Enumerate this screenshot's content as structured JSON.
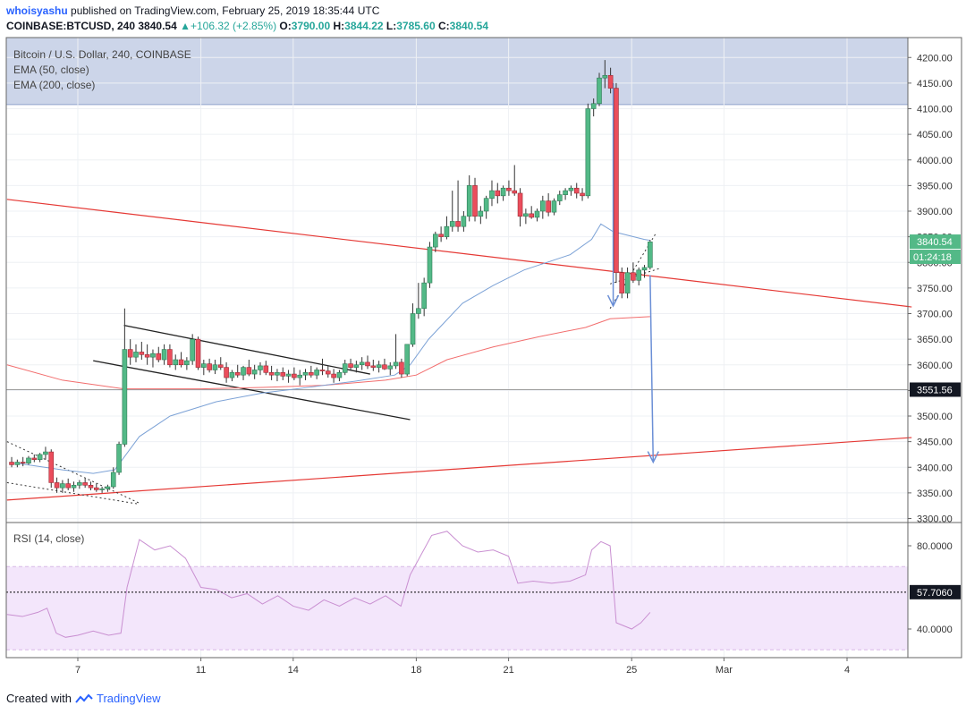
{
  "header": {
    "author": "whoisyashu",
    "published_text": "published on TradingView.com, February 25, 2019 18:35:44 UTC",
    "symbol": "COINBASE:BTCUSD, 240",
    "last": "3840.54",
    "change": "+106.32 (+2.85%)",
    "o_label": "O:",
    "o_value": "3790.00",
    "h_label": "H:",
    "h_value": "3844.22",
    "l_label": "L:",
    "l_value": "3785.60",
    "c_label": "C:",
    "c_value": "3840.54"
  },
  "legend": {
    "title": "Bitcoin / U.S. Dollar, 240, COINBASE",
    "ema50": "EMA (50, close)",
    "ema200": "EMA (200, close)",
    "rsi": "RSI (14, close)"
  },
  "footer": {
    "created_with": "Created with",
    "brand": "TradingView"
  },
  "colors": {
    "up": "#26a69a",
    "down": "#ef5350",
    "candle_up": "#53b987",
    "candle_down": "#eb4d5c",
    "ema50": "#7ca2d6",
    "ema200": "#f26d6d",
    "trend": "#e53935",
    "zone": "#c9d3e8",
    "rsi": "#c98fd1",
    "rsi_band": "#f3e6fb",
    "arrow": "#6b8fd6"
  },
  "chart_data": {
    "type": "candlestick",
    "price_axis": {
      "range": [
        3300,
        4200
      ],
      "ticks": [
        3300,
        3350,
        3400,
        3450,
        3500,
        3550,
        3600,
        3650,
        3700,
        3750,
        3800,
        3850,
        3900,
        3950,
        4000,
        4050,
        4100,
        4150,
        4200
      ],
      "tick_labels": [
        "3300.00",
        "3350.00",
        "3400.00",
        "3450.00",
        "3500.00",
        "3550.00",
        "3600.00",
        "3650.00",
        "3700.00",
        "3750.00",
        "3800.00",
        "3850.00",
        "3900.00",
        "3950.00",
        "4000.00",
        "4050.00",
        "4100.00",
        "4150.00",
        "4200.00"
      ]
    },
    "time_axis": {
      "ticks": [
        {
          "day": 7,
          "label": "7"
        },
        {
          "day": 11,
          "label": "11"
        },
        {
          "day": 14,
          "label": "14"
        },
        {
          "day": 18,
          "label": "18"
        },
        {
          "day": 21,
          "label": "21"
        },
        {
          "day": 25,
          "label": "25"
        },
        {
          "day": 28,
          "label": "Mar"
        },
        {
          "day": 32,
          "label": "4"
        }
      ],
      "range_days": [
        4.7,
        34.1
      ]
    },
    "price_labels": [
      {
        "value": 3840.54,
        "text": "3840.54",
        "countdown": "01:24:18"
      },
      {
        "value": 3551.56,
        "text": "3551.56"
      }
    ],
    "horizontal_line": 3551.56,
    "resistance_zone": [
      4108,
      4240
    ],
    "candles_ohlc": [
      [
        3410,
        3420,
        3400,
        3405
      ],
      [
        3405,
        3415,
        3400,
        3410
      ],
      [
        3410,
        3420,
        3402,
        3408
      ],
      [
        3408,
        3422,
        3405,
        3418
      ],
      [
        3418,
        3425,
        3410,
        3415
      ],
      [
        3415,
        3428,
        3410,
        3425
      ],
      [
        3425,
        3440,
        3415,
        3430
      ],
      [
        3430,
        3435,
        3360,
        3370
      ],
      [
        3370,
        3380,
        3350,
        3360
      ],
      [
        3360,
        3375,
        3350,
        3368
      ],
      [
        3368,
        3378,
        3355,
        3360
      ],
      [
        3360,
        3372,
        3352,
        3365
      ],
      [
        3365,
        3375,
        3358,
        3370
      ],
      [
        3370,
        3378,
        3360,
        3365
      ],
      [
        3365,
        3372,
        3355,
        3360
      ],
      [
        3360,
        3368,
        3352,
        3356
      ],
      [
        3356,
        3362,
        3350,
        3358
      ],
      [
        3358,
        3366,
        3352,
        3362
      ],
      [
        3362,
        3400,
        3358,
        3390
      ],
      [
        3390,
        3450,
        3385,
        3445
      ],
      [
        3445,
        3710,
        3440,
        3630
      ],
      [
        3630,
        3650,
        3600,
        3615
      ],
      [
        3615,
        3640,
        3605,
        3625
      ],
      [
        3625,
        3645,
        3610,
        3620
      ],
      [
        3620,
        3640,
        3600,
        3615
      ],
      [
        3615,
        3630,
        3595,
        3622
      ],
      [
        3622,
        3635,
        3605,
        3610
      ],
      [
        3610,
        3640,
        3600,
        3630
      ],
      [
        3630,
        3640,
        3595,
        3600
      ],
      [
        3600,
        3620,
        3590,
        3610
      ],
      [
        3610,
        3625,
        3595,
        3600
      ],
      [
        3600,
        3615,
        3590,
        3608
      ],
      [
        3608,
        3660,
        3600,
        3650
      ],
      [
        3650,
        3655,
        3590,
        3595
      ],
      [
        3595,
        3610,
        3580,
        3602
      ],
      [
        3602,
        3612,
        3585,
        3590
      ],
      [
        3590,
        3610,
        3582,
        3600
      ],
      [
        3600,
        3615,
        3590,
        3595
      ],
      [
        3595,
        3605,
        3565,
        3575
      ],
      [
        3575,
        3590,
        3568,
        3585
      ],
      [
        3585,
        3600,
        3575,
        3580
      ],
      [
        3580,
        3598,
        3570,
        3595
      ],
      [
        3595,
        3610,
        3578,
        3582
      ],
      [
        3582,
        3600,
        3572,
        3590
      ],
      [
        3590,
        3605,
        3580,
        3598
      ],
      [
        3598,
        3608,
        3580,
        3585
      ],
      [
        3585,
        3598,
        3570,
        3580
      ],
      [
        3580,
        3592,
        3568,
        3585
      ],
      [
        3585,
        3595,
        3570,
        3578
      ],
      [
        3578,
        3590,
        3565,
        3582
      ],
      [
        3582,
        3595,
        3570,
        3575
      ],
      [
        3575,
        3590,
        3560,
        3580
      ],
      [
        3580,
        3592,
        3570,
        3585
      ],
      [
        3585,
        3598,
        3575,
        3580
      ],
      [
        3580,
        3595,
        3572,
        3590
      ],
      [
        3590,
        3612,
        3580,
        3588
      ],
      [
        3588,
        3598,
        3575,
        3582
      ],
      [
        3582,
        3592,
        3565,
        3575
      ],
      [
        3575,
        3590,
        3568,
        3585
      ],
      [
        3585,
        3610,
        3580,
        3602
      ],
      [
        3602,
        3612,
        3590,
        3595
      ],
      [
        3595,
        3608,
        3585,
        3600
      ],
      [
        3600,
        3615,
        3590,
        3605
      ],
      [
        3605,
        3618,
        3592,
        3598
      ],
      [
        3598,
        3610,
        3588,
        3595
      ],
      [
        3595,
        3608,
        3585,
        3600
      ],
      [
        3600,
        3612,
        3590,
        3592
      ],
      [
        3592,
        3605,
        3580,
        3598
      ],
      [
        3598,
        3660,
        3592,
        3605
      ],
      [
        3605,
        3612,
        3575,
        3582
      ],
      [
        3582,
        3620,
        3578,
        3640
      ],
      [
        3640,
        3720,
        3635,
        3700
      ],
      [
        3700,
        3760,
        3690,
        3710
      ],
      [
        3710,
        3770,
        3695,
        3760
      ],
      [
        3760,
        3840,
        3750,
        3830
      ],
      [
        3830,
        3860,
        3820,
        3855
      ],
      [
        3855,
        3870,
        3840,
        3850
      ],
      [
        3850,
        3890,
        3845,
        3870
      ],
      [
        3870,
        3940,
        3860,
        3880
      ],
      [
        3880,
        3960,
        3860,
        3870
      ],
      [
        3870,
        3900,
        3860,
        3890
      ],
      [
        3890,
        3970,
        3880,
        3950
      ],
      [
        3950,
        3965,
        3880,
        3890
      ],
      [
        3890,
        3910,
        3875,
        3900
      ],
      [
        3900,
        3930,
        3885,
        3925
      ],
      [
        3925,
        3960,
        3910,
        3940
      ],
      [
        3940,
        3955,
        3915,
        3930
      ],
      [
        3930,
        3950,
        3920,
        3945
      ],
      [
        3945,
        3960,
        3930,
        3940
      ],
      [
        3940,
        3990,
        3930,
        3935
      ],
      [
        3935,
        3945,
        3870,
        3890
      ],
      [
        3890,
        3905,
        3875,
        3895
      ],
      [
        3895,
        3910,
        3885,
        3888
      ],
      [
        3888,
        3905,
        3880,
        3900
      ],
      [
        3900,
        3930,
        3885,
        3920
      ],
      [
        3920,
        3935,
        3890,
        3898
      ],
      [
        3898,
        3925,
        3892,
        3920
      ],
      [
        3920,
        3940,
        3912,
        3932
      ],
      [
        3932,
        3945,
        3922,
        3940
      ],
      [
        3940,
        3950,
        3930,
        3945
      ],
      [
        3945,
        3955,
        3925,
        3935
      ],
      [
        3935,
        3945,
        3920,
        3930
      ],
      [
        3930,
        4110,
        3925,
        4100
      ],
      [
        4100,
        4120,
        4085,
        4110
      ],
      [
        4110,
        4170,
        4105,
        4160
      ],
      [
        4160,
        4195,
        4140,
        4165
      ],
      [
        4165,
        4180,
        4130,
        4140
      ],
      [
        4140,
        4150,
        3760,
        3780
      ],
      [
        3780,
        3790,
        3730,
        3740
      ],
      [
        3740,
        3790,
        3730,
        3780
      ],
      [
        3780,
        3800,
        3760,
        3765
      ],
      [
        3765,
        3790,
        3755,
        3785
      ],
      [
        3785,
        3795,
        3770,
        3790
      ],
      [
        3790,
        3844,
        3786,
        3840
      ]
    ],
    "ema50": [
      [
        5.0,
        3408
      ],
      [
        6.5,
        3395
      ],
      [
        7.5,
        3388
      ],
      [
        8.2,
        3395
      ],
      [
        9.0,
        3460
      ],
      [
        10,
        3500
      ],
      [
        11.5,
        3528
      ],
      [
        13,
        3545
      ],
      [
        14.5,
        3556
      ],
      [
        16,
        3568
      ],
      [
        17.3,
        3580
      ],
      [
        17.8,
        3600
      ],
      [
        18.4,
        3650
      ],
      [
        19.5,
        3720
      ],
      [
        20.5,
        3755
      ],
      [
        21.5,
        3785
      ],
      [
        23.0,
        3815
      ],
      [
        23.7,
        3845
      ],
      [
        24.0,
        3875
      ],
      [
        24.4,
        3860
      ],
      [
        25.4,
        3845
      ],
      [
        25.6,
        3843
      ]
    ],
    "ema200": [
      [
        4.7,
        3600
      ],
      [
        6.5,
        3570
      ],
      [
        8.5,
        3553
      ],
      [
        11,
        3553
      ],
      [
        13,
        3556
      ],
      [
        15,
        3560
      ],
      [
        17,
        3570
      ],
      [
        18,
        3580
      ],
      [
        19,
        3610
      ],
      [
        20.5,
        3635
      ],
      [
        22,
        3655
      ],
      [
        23.5,
        3673
      ],
      [
        24.3,
        3690
      ],
      [
        25.6,
        3694
      ]
    ],
    "trend_lines": [
      {
        "from": [
          4.7,
          3923
        ],
        "to": [
          34.1,
          3713
        ]
      },
      {
        "from": [
          4.7,
          3336
        ],
        "to": [
          34.1,
          3458
        ]
      }
    ],
    "channel_lines": [
      {
        "from": [
          8.5,
          3677
        ],
        "to": [
          16.5,
          3582
        ]
      },
      {
        "from": [
          7.5,
          3608
        ],
        "to": [
          17.8,
          3493
        ]
      }
    ],
    "dotted_lines": [
      {
        "from": [
          4.7,
          3450
        ],
        "to": [
          9.0,
          3330
        ]
      },
      {
        "from": [
          4.7,
          3370
        ],
        "to": [
          9.0,
          3328
        ]
      },
      {
        "from": [
          24.3,
          3710
        ],
        "to": [
          25.8,
          3858
        ]
      },
      {
        "from": [
          24.3,
          3758
        ],
        "to": [
          25.9,
          3788
        ]
      }
    ],
    "arrows": [
      {
        "from": [
          24.4,
          4150
        ],
        "to": [
          24.4,
          3715
        ]
      },
      {
        "from": [
          25.6,
          3775
        ],
        "to": [
          25.7,
          3410
        ]
      }
    ],
    "rsi": {
      "title": "RSI (14, close)",
      "range": [
        30,
        90
      ],
      "ticks": [
        40,
        80
      ],
      "tick_labels": [
        "40.0000",
        "80.0000"
      ],
      "band": [
        30,
        70
      ],
      "level": 57.706,
      "level_label": "57.7060",
      "values": [
        [
          4.7,
          47
        ],
        [
          5.2,
          46
        ],
        [
          5.7,
          48
        ],
        [
          6.0,
          50
        ],
        [
          6.3,
          38
        ],
        [
          6.6,
          36
        ],
        [
          7.0,
          37
        ],
        [
          7.5,
          39
        ],
        [
          8.0,
          37
        ],
        [
          8.4,
          38
        ],
        [
          8.6,
          60
        ],
        [
          9.0,
          83
        ],
        [
          9.5,
          78
        ],
        [
          10,
          80
        ],
        [
          10.5,
          74
        ],
        [
          11.0,
          60
        ],
        [
          11.5,
          59
        ],
        [
          12,
          55
        ],
        [
          12.5,
          57
        ],
        [
          13,
          52
        ],
        [
          13.5,
          56
        ],
        [
          14,
          51
        ],
        [
          14.5,
          49
        ],
        [
          15,
          54
        ],
        [
          15.5,
          51
        ],
        [
          16,
          55
        ],
        [
          16.5,
          52
        ],
        [
          17,
          56
        ],
        [
          17.5,
          51
        ],
        [
          17.8,
          66
        ],
        [
          18.5,
          85
        ],
        [
          19.0,
          87
        ],
        [
          19.5,
          80
        ],
        [
          20.0,
          77
        ],
        [
          20.5,
          78
        ],
        [
          21.0,
          75
        ],
        [
          21.3,
          62
        ],
        [
          21.8,
          63
        ],
        [
          22.4,
          62
        ],
        [
          23.0,
          63
        ],
        [
          23.5,
          66
        ],
        [
          23.7,
          78
        ],
        [
          24.0,
          82
        ],
        [
          24.3,
          80
        ],
        [
          24.5,
          43
        ],
        [
          25.0,
          40
        ],
        [
          25.3,
          43
        ],
        [
          25.6,
          48
        ]
      ]
    }
  }
}
